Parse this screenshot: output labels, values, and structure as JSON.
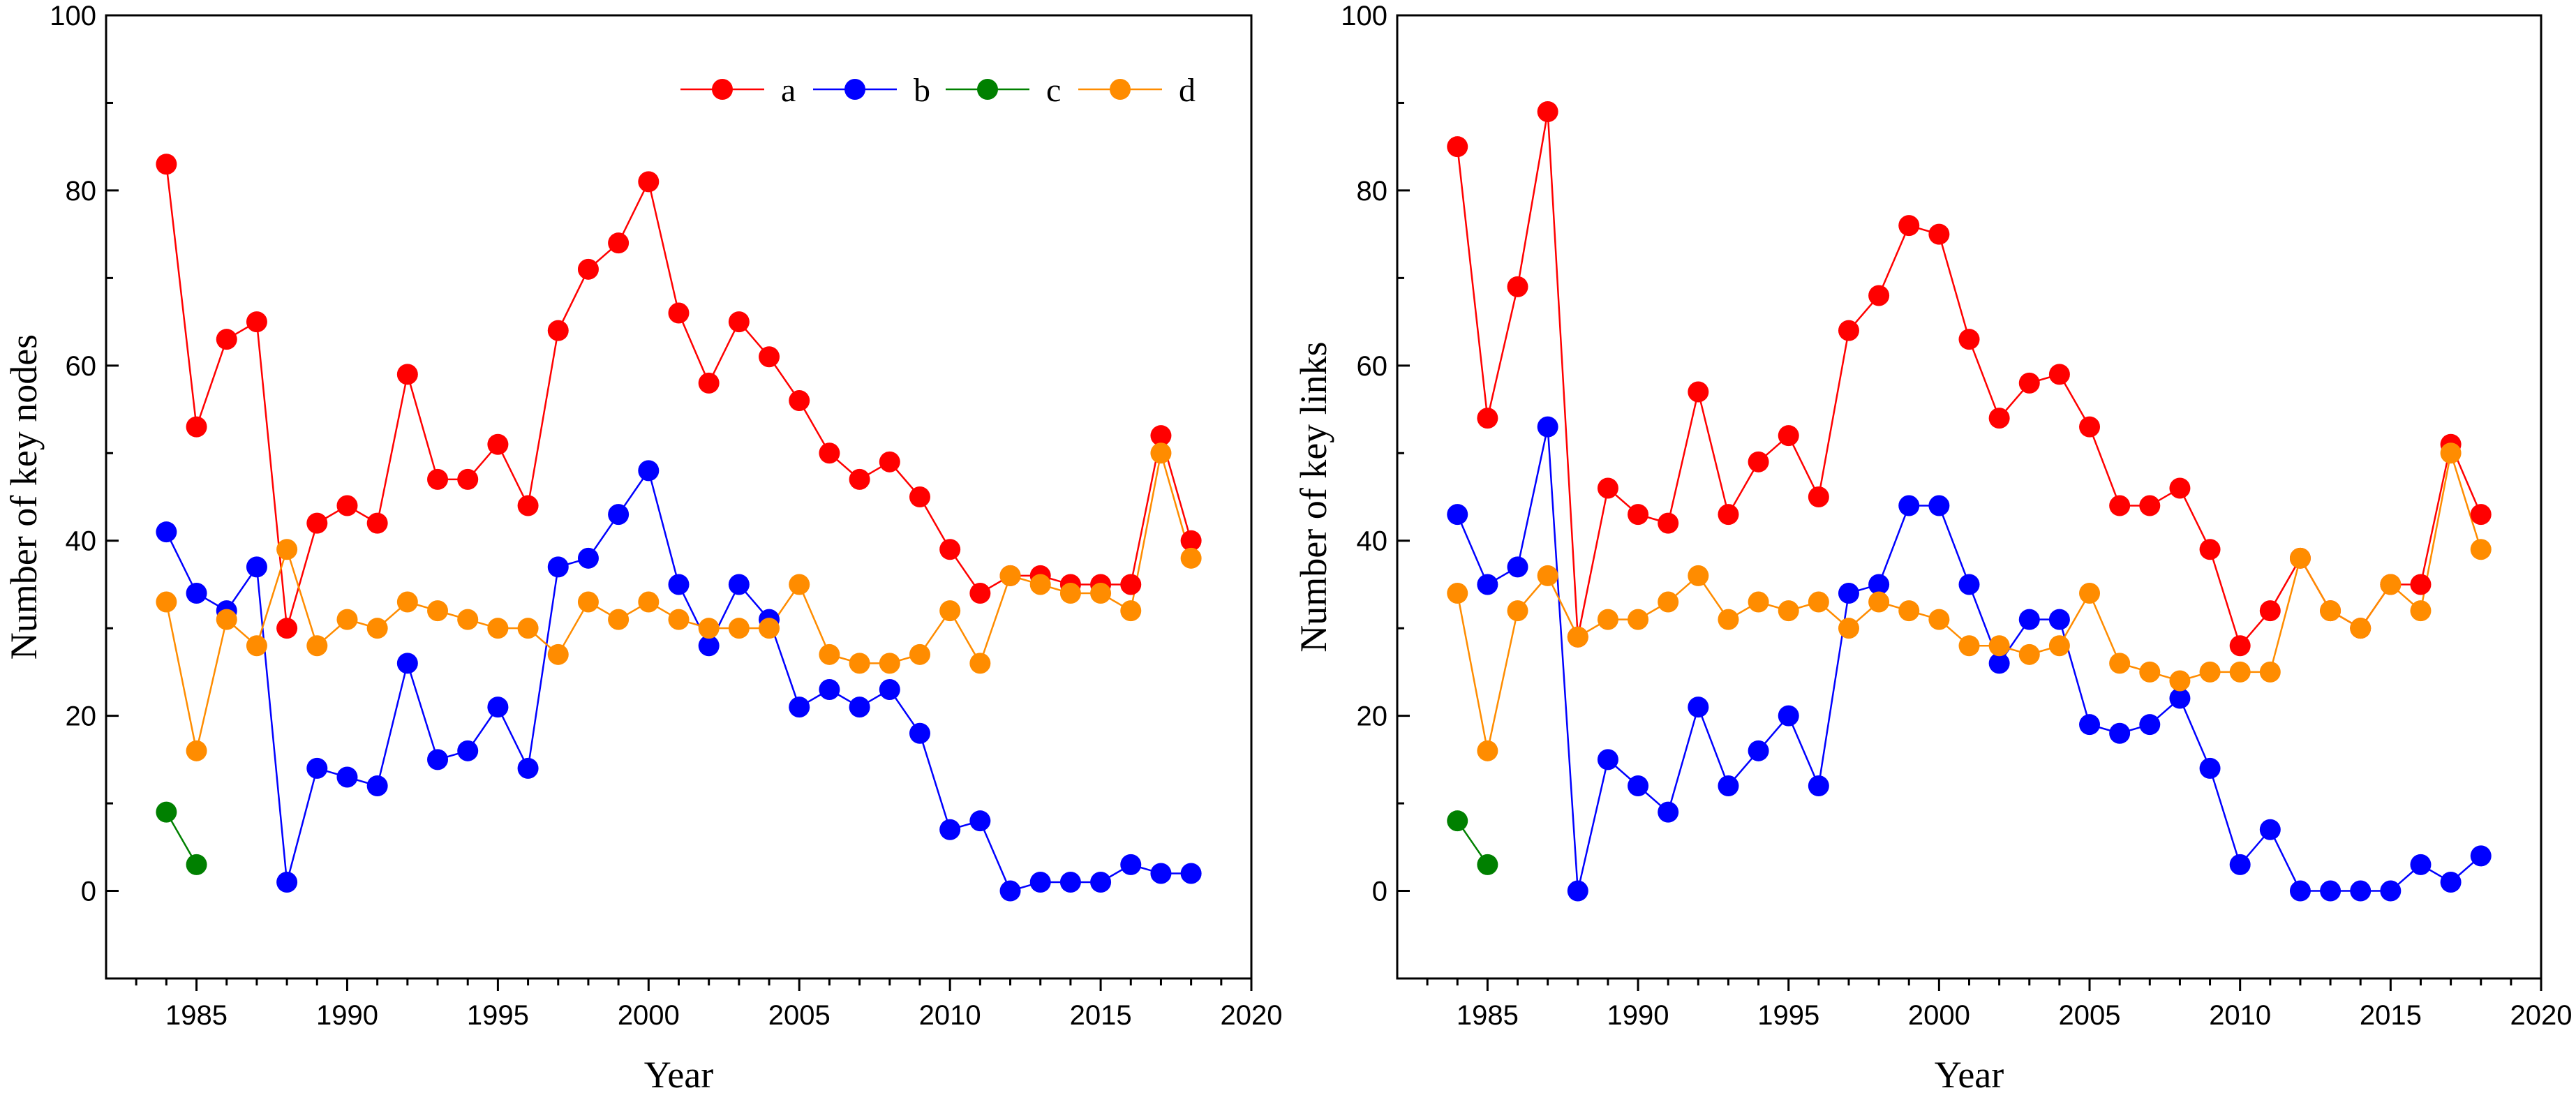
{
  "chart_data": [
    {
      "type": "line",
      "xlabel": "Year",
      "ylabel": "Number of key nodes",
      "xlim": [
        1982,
        2020
      ],
      "ylim": [
        -10,
        100
      ],
      "xticks": [
        1985,
        1990,
        1995,
        2000,
        2005,
        2010,
        2015,
        2020
      ],
      "yticks": [
        0,
        20,
        40,
        60,
        80,
        100
      ],
      "legend": {
        "placement": "top-right",
        "entries": [
          "a",
          "b",
          "c",
          "d"
        ]
      },
      "series": [
        {
          "name": "a",
          "color": "#ff0000",
          "x": [
            1984,
            1985,
            1986,
            1987,
            1988,
            1989,
            1990,
            1991,
            1992,
            1993,
            1994,
            1995,
            1996,
            1997,
            1998,
            1999,
            2000,
            2001,
            2002,
            2003,
            2004,
            2005,
            2006,
            2007,
            2008,
            2009,
            2010,
            2011,
            2012,
            2013,
            2014,
            2015,
            2016,
            2017,
            2018
          ],
          "values": [
            83,
            53,
            63,
            65,
            30,
            42,
            44,
            42,
            59,
            47,
            47,
            51,
            44,
            64,
            71,
            74,
            81,
            66,
            58,
            65,
            61,
            56,
            50,
            47,
            49,
            45,
            39,
            34,
            36,
            36,
            35,
            35,
            35,
            52,
            40
          ]
        },
        {
          "name": "b",
          "color": "#0000ff",
          "x": [
            1984,
            1985,
            1986,
            1987,
            1988,
            1989,
            1990,
            1991,
            1992,
            1993,
            1994,
            1995,
            1996,
            1997,
            1998,
            1999,
            2000,
            2001,
            2002,
            2003,
            2004,
            2005,
            2006,
            2007,
            2008,
            2009,
            2010,
            2011,
            2012,
            2013,
            2014,
            2015,
            2016,
            2017,
            2018
          ],
          "values": [
            41,
            34,
            32,
            37,
            1,
            14,
            13,
            12,
            26,
            15,
            16,
            21,
            14,
            37,
            38,
            43,
            48,
            35,
            28,
            35,
            31,
            21,
            23,
            21,
            23,
            18,
            7,
            8,
            0,
            1,
            1,
            1,
            3,
            2,
            2
          ]
        },
        {
          "name": "c",
          "color": "#008000",
          "x": [
            1984,
            1985
          ],
          "values": [
            9,
            3
          ]
        },
        {
          "name": "d",
          "color": "#ff8c00",
          "x": [
            1984,
            1985,
            1986,
            1987,
            1988,
            1989,
            1990,
            1991,
            1992,
            1993,
            1994,
            1995,
            1996,
            1997,
            1998,
            1999,
            2000,
            2001,
            2002,
            2003,
            2004,
            2005,
            2006,
            2007,
            2008,
            2009,
            2010,
            2011,
            2012,
            2013,
            2014,
            2015,
            2016,
            2017,
            2018
          ],
          "values": [
            33,
            16,
            31,
            28,
            39,
            28,
            31,
            30,
            33,
            32,
            31,
            30,
            30,
            27,
            33,
            31,
            33,
            31,
            30,
            30,
            30,
            35,
            27,
            26,
            26,
            27,
            32,
            26,
            36,
            35,
            34,
            34,
            32,
            50,
            38
          ]
        }
      ]
    },
    {
      "type": "line",
      "xlabel": "Year",
      "ylabel": "Number of key links",
      "xlim": [
        1982,
        2020
      ],
      "ylim": [
        -10,
        100
      ],
      "xticks": [
        1985,
        1990,
        1995,
        2000,
        2005,
        2010,
        2015,
        2020
      ],
      "yticks": [
        0,
        20,
        40,
        60,
        80,
        100
      ],
      "legend": null,
      "series": [
        {
          "name": "a",
          "color": "#ff0000",
          "x": [
            1984,
            1985,
            1986,
            1987,
            1988,
            1989,
            1990,
            1991,
            1992,
            1993,
            1994,
            1995,
            1996,
            1997,
            1998,
            1999,
            2000,
            2001,
            2002,
            2003,
            2004,
            2005,
            2006,
            2007,
            2008,
            2009,
            2010,
            2011,
            2012,
            2013,
            2014,
            2015,
            2016,
            2017,
            2018
          ],
          "values": [
            85,
            54,
            69,
            89,
            29,
            46,
            43,
            42,
            57,
            43,
            49,
            52,
            45,
            64,
            68,
            76,
            75,
            63,
            54,
            58,
            59,
            53,
            44,
            44,
            46,
            39,
            28,
            32,
            38,
            32,
            30,
            35,
            35,
            51,
            43
          ]
        },
        {
          "name": "b",
          "color": "#0000ff",
          "x": [
            1984,
            1985,
            1986,
            1987,
            1988,
            1989,
            1990,
            1991,
            1992,
            1993,
            1994,
            1995,
            1996,
            1997,
            1998,
            1999,
            2000,
            2001,
            2002,
            2003,
            2004,
            2005,
            2006,
            2007,
            2008,
            2009,
            2010,
            2011,
            2012,
            2013,
            2014,
            2015,
            2016,
            2017,
            2018
          ],
          "values": [
            43,
            35,
            37,
            53,
            0,
            15,
            12,
            9,
            21,
            12,
            16,
            20,
            12,
            34,
            35,
            44,
            44,
            35,
            26,
            31,
            31,
            19,
            18,
            19,
            22,
            14,
            3,
            7,
            0,
            0,
            0,
            0,
            3,
            1,
            4
          ]
        },
        {
          "name": "c",
          "color": "#008000",
          "x": [
            1984,
            1985
          ],
          "values": [
            8,
            3
          ]
        },
        {
          "name": "d",
          "color": "#ff8c00",
          "x": [
            1984,
            1985,
            1986,
            1987,
            1988,
            1989,
            1990,
            1991,
            1992,
            1993,
            1994,
            1995,
            1996,
            1997,
            1998,
            1999,
            2000,
            2001,
            2002,
            2003,
            2004,
            2005,
            2006,
            2007,
            2008,
            2009,
            2010,
            2011,
            2012,
            2013,
            2014,
            2015,
            2016,
            2017,
            2018
          ],
          "values": [
            34,
            16,
            32,
            36,
            29,
            31,
            31,
            33,
            36,
            31,
            33,
            32,
            33,
            30,
            33,
            32,
            31,
            28,
            28,
            27,
            28,
            34,
            26,
            25,
            24,
            25,
            25,
            25,
            38,
            32,
            30,
            35,
            32,
            50,
            39
          ]
        }
      ]
    }
  ]
}
